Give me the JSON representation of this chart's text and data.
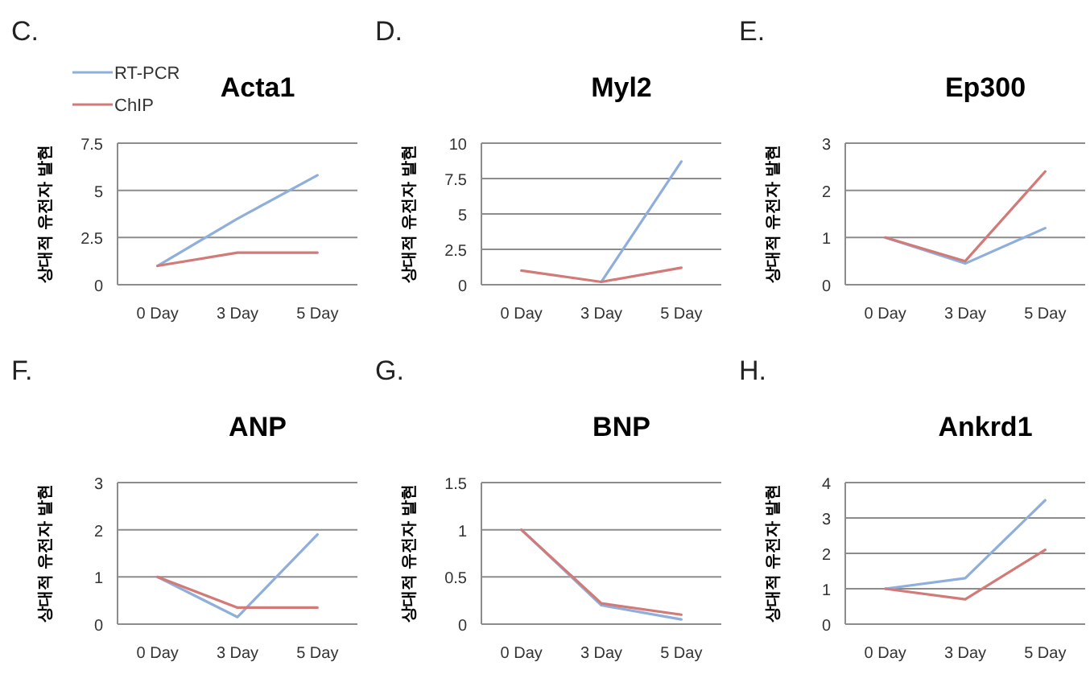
{
  "chart_data": [
    {
      "type": "line",
      "title": "Acta1",
      "ylabel": "상대적 유전자 발현",
      "annotations": [
        "C."
      ],
      "categories": [
        "0 Day",
        "3 Day",
        "5 Day"
      ],
      "legend": "top left",
      "grid": "y",
      "ylim": [
        0,
        7.5
      ],
      "yticks": [
        0,
        2.5,
        5,
        7.5
      ],
      "series": [
        {
          "name": "RT-PCR",
          "color": "#8eaedb",
          "values": [
            1,
            3.5,
            5.8
          ]
        },
        {
          "name": "ChIP",
          "color": "#d27a78",
          "values": [
            1,
            1.7,
            1.7
          ]
        }
      ]
    },
    {
      "type": "line",
      "title": "Myl2",
      "ylabel": "상대적 유전자 발현",
      "annotations": [
        "D."
      ],
      "categories": [
        "0 Day",
        "3 Day",
        "5 Day"
      ],
      "grid": "y",
      "ylim": [
        0,
        10
      ],
      "yticks": [
        0,
        2.5,
        5,
        7.5,
        10
      ],
      "series": [
        {
          "color": "#8eaedb",
          "values": [
            null,
            0.2,
            8.7
          ]
        },
        {
          "color": "#d27a78",
          "values": [
            1,
            0.2,
            1.2
          ]
        }
      ]
    },
    {
      "type": "line",
      "title": "Ep300",
      "ylabel": "상대적 유전자 발현",
      "annotations": [
        "E."
      ],
      "categories": [
        "0 Day",
        "3 Day",
        "5 Day"
      ],
      "grid": "y",
      "ylim": [
        0,
        3
      ],
      "yticks": [
        0,
        1,
        2,
        3
      ],
      "series": [
        {
          "color": "#8eaedb",
          "values": [
            1,
            0.45,
            1.2
          ]
        },
        {
          "color": "#d27a78",
          "values": [
            1,
            0.5,
            2.4
          ]
        }
      ]
    },
    {
      "type": "line",
      "title": "ANP",
      "ylabel": "상대적 유전자 발현",
      "annotations": [
        "F."
      ],
      "categories": [
        "0 Day",
        "3 Day",
        "5 Day"
      ],
      "grid": "y",
      "ylim": [
        0,
        3
      ],
      "yticks": [
        0,
        1,
        2,
        3
      ],
      "series": [
        {
          "color": "#8eaedb",
          "values": [
            1,
            0.15,
            1.9
          ]
        },
        {
          "color": "#d27a78",
          "values": [
            1,
            0.35,
            0.35
          ]
        }
      ]
    },
    {
      "type": "line",
      "title": "BNP",
      "ylabel": "상대적 유전자 발현",
      "annotations": [
        "G."
      ],
      "categories": [
        "0 Day",
        "3 Day",
        "5 Day"
      ],
      "grid": "y",
      "ylim": [
        0,
        1.5
      ],
      "yticks": [
        0,
        0.5,
        1,
        1.5
      ],
      "series": [
        {
          "color": "#8eaedb",
          "values": [
            1,
            0.2,
            0.05
          ]
        },
        {
          "color": "#d27a78",
          "values": [
            1,
            0.22,
            0.1
          ]
        }
      ]
    },
    {
      "type": "line",
      "title": "Ankrd1",
      "ylabel": "상대적 유전자 발현",
      "annotations": [
        "H."
      ],
      "categories": [
        "0 Day",
        "3 Day",
        "5 Day"
      ],
      "grid": "y",
      "ylim": [
        0,
        4
      ],
      "yticks": [
        0,
        1,
        2,
        3,
        4
      ],
      "series": [
        {
          "color": "#8eaedb",
          "values": [
            1,
            1.3,
            3.5
          ]
        },
        {
          "color": "#d27a78",
          "values": [
            1,
            0.7,
            2.1
          ]
        }
      ]
    }
  ]
}
